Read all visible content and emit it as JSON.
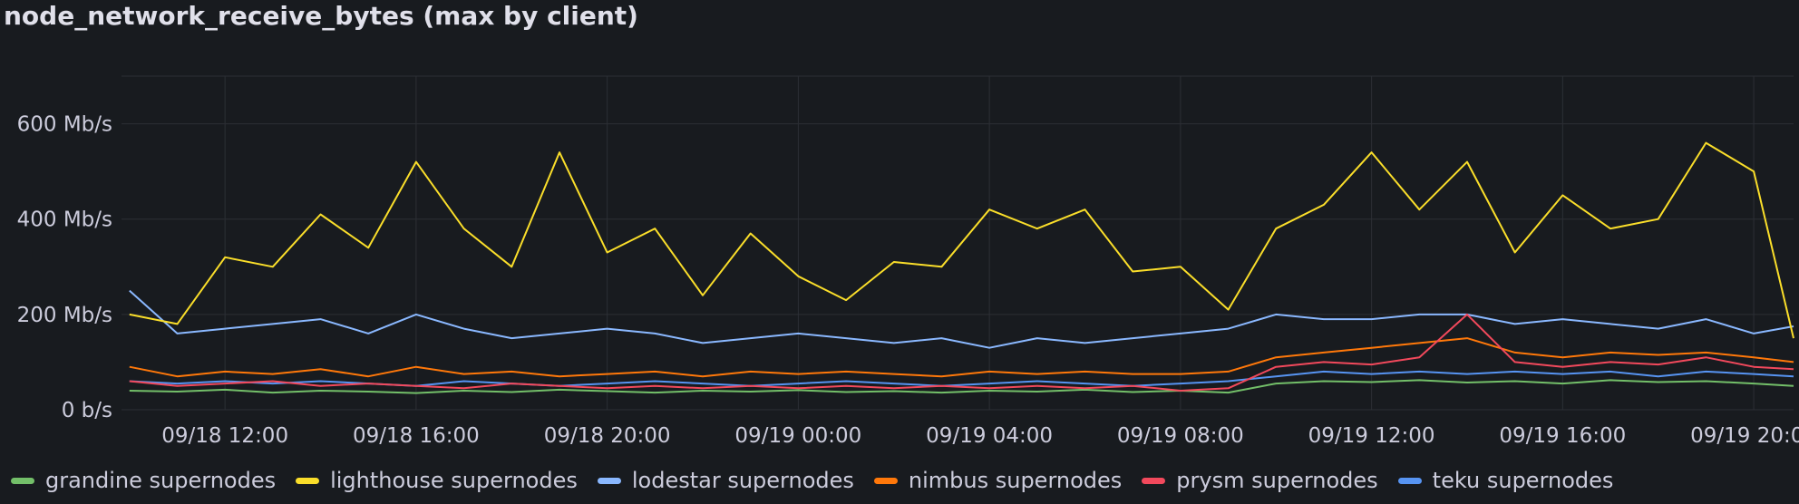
{
  "panel": {
    "title": "node_network_receive_bytes (max by client)"
  },
  "chart_data": {
    "type": "line",
    "title": "node_network_receive_bytes (max by client)",
    "xlabel": "",
    "ylabel": "",
    "x_range": [
      "09/18 09:50",
      "09/19 20:50"
    ],
    "x_ticks": [
      "09/18 12:00",
      "09/18 16:00",
      "09/18 20:00",
      "09/19 00:00",
      "09/19 04:00",
      "09/19 08:00",
      "09/19 12:00",
      "09/19 16:00",
      "09/19 20:00"
    ],
    "ylim": [
      0,
      700
    ],
    "y_unit": "Mb/s",
    "y_ticks": [
      "0 b/s",
      "200 Mb/s",
      "400 Mb/s",
      "600 Mb/s"
    ],
    "grid": true,
    "legend_position": "bottom",
    "x_times": [
      "09/18 10:00",
      "09/18 11:00",
      "09/18 12:00",
      "09/18 13:00",
      "09/18 14:00",
      "09/18 15:00",
      "09/18 16:00",
      "09/18 17:00",
      "09/18 18:00",
      "09/18 19:00",
      "09/18 20:00",
      "09/18 21:00",
      "09/18 22:00",
      "09/18 23:00",
      "09/19 00:00",
      "09/19 01:00",
      "09/19 02:00",
      "09/19 03:00",
      "09/19 04:00",
      "09/19 05:00",
      "09/19 06:00",
      "09/19 07:00",
      "09/19 08:00",
      "09/19 09:00",
      "09/19 10:00",
      "09/19 11:00",
      "09/19 12:00",
      "09/19 13:00",
      "09/19 14:00",
      "09/19 15:00",
      "09/19 16:00",
      "09/19 17:00",
      "09/19 18:00",
      "09/19 19:00",
      "09/19 20:00",
      "09/19 20:50"
    ],
    "series": [
      {
        "name": "grandine supernodes",
        "color": "#73bf69",
        "values": [
          40,
          38,
          42,
          36,
          40,
          38,
          35,
          40,
          37,
          42,
          39,
          36,
          40,
          38,
          41,
          37,
          39,
          36,
          40,
          38,
          42,
          37,
          40,
          36,
          55,
          60,
          58,
          62,
          57,
          60,
          55,
          62,
          58,
          60,
          55,
          50
        ]
      },
      {
        "name": "lighthouse supernodes",
        "color": "#fade2a",
        "values": [
          200,
          180,
          320,
          300,
          410,
          340,
          520,
          380,
          300,
          540,
          330,
          380,
          240,
          370,
          280,
          230,
          310,
          300,
          420,
          380,
          420,
          290,
          300,
          210,
          380,
          430,
          540,
          420,
          520,
          330,
          450,
          380,
          400,
          560,
          500,
          150
        ]
      },
      {
        "name": "lodestar supernodes",
        "color": "#8ab8ff",
        "values": [
          250,
          160,
          170,
          180,
          190,
          160,
          200,
          170,
          150,
          160,
          170,
          160,
          140,
          150,
          160,
          150,
          140,
          150,
          130,
          150,
          140,
          150,
          160,
          170,
          200,
          190,
          190,
          200,
          200,
          180,
          190,
          180,
          170,
          190,
          160,
          175
        ]
      },
      {
        "name": "nimbus supernodes",
        "color": "#ff780a",
        "values": [
          90,
          70,
          80,
          75,
          85,
          70,
          90,
          75,
          80,
          70,
          75,
          80,
          70,
          80,
          75,
          80,
          75,
          70,
          80,
          75,
          80,
          75,
          75,
          80,
          110,
          120,
          130,
          140,
          150,
          120,
          110,
          120,
          115,
          120,
          110,
          100
        ]
      },
      {
        "name": "prysm supernodes",
        "color": "#f2495c",
        "values": [
          60,
          50,
          55,
          60,
          50,
          55,
          50,
          45,
          55,
          50,
          45,
          50,
          45,
          50,
          45,
          50,
          45,
          50,
          45,
          50,
          45,
          50,
          40,
          45,
          90,
          100,
          95,
          110,
          200,
          100,
          90,
          100,
          95,
          110,
          90,
          85
        ]
      },
      {
        "name": "teku supernodes",
        "color": "#5794f2",
        "values": [
          60,
          55,
          60,
          55,
          60,
          55,
          50,
          60,
          55,
          50,
          55,
          60,
          55,
          50,
          55,
          60,
          55,
          50,
          55,
          60,
          55,
          50,
          55,
          60,
          70,
          80,
          75,
          80,
          75,
          80,
          75,
          80,
          70,
          80,
          75,
          70
        ]
      }
    ]
  }
}
